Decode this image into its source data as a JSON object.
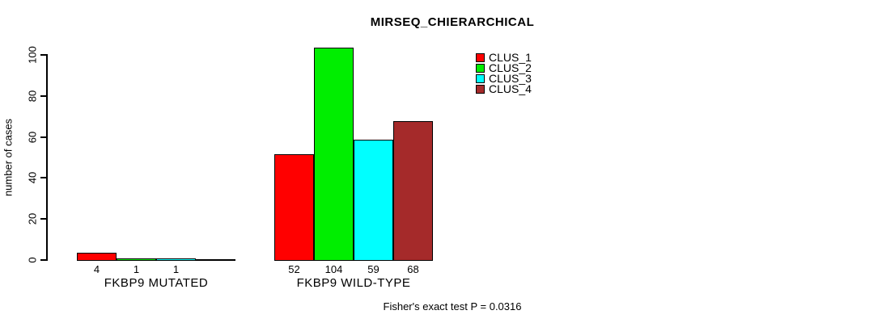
{
  "chart_data": {
    "type": "bar",
    "title": "MIRSEQ_CHIERARCHICAL",
    "ylabel": "number of cases",
    "ylim": [
      0,
      100
    ],
    "yticks": [
      0,
      20,
      40,
      60,
      80,
      100
    ],
    "grid": false,
    "legend_position": "top-right",
    "background_color": "#ffffff",
    "axis_color": "#000000",
    "categories": [
      "FKBP9 MUTATED",
      "FKBP9 WILD-TYPE"
    ],
    "series": [
      {
        "name": "CLUS_1",
        "color": "#ff0000",
        "values": [
          4,
          52
        ]
      },
      {
        "name": "CLUS_2",
        "color": "#00ee00",
        "values": [
          1,
          104
        ]
      },
      {
        "name": "CLUS_3",
        "color": "#00ffff",
        "values": [
          1,
          59
        ]
      },
      {
        "name": "CLUS_4",
        "color": "#a52a2a",
        "values": [
          0,
          68
        ]
      }
    ],
    "bar_value_labels": [
      [
        "4",
        "1",
        "1",
        ""
      ],
      [
        "52",
        "104",
        "59",
        "68"
      ]
    ],
    "annotation": "Fisher's exact test P = 0.0316"
  }
}
